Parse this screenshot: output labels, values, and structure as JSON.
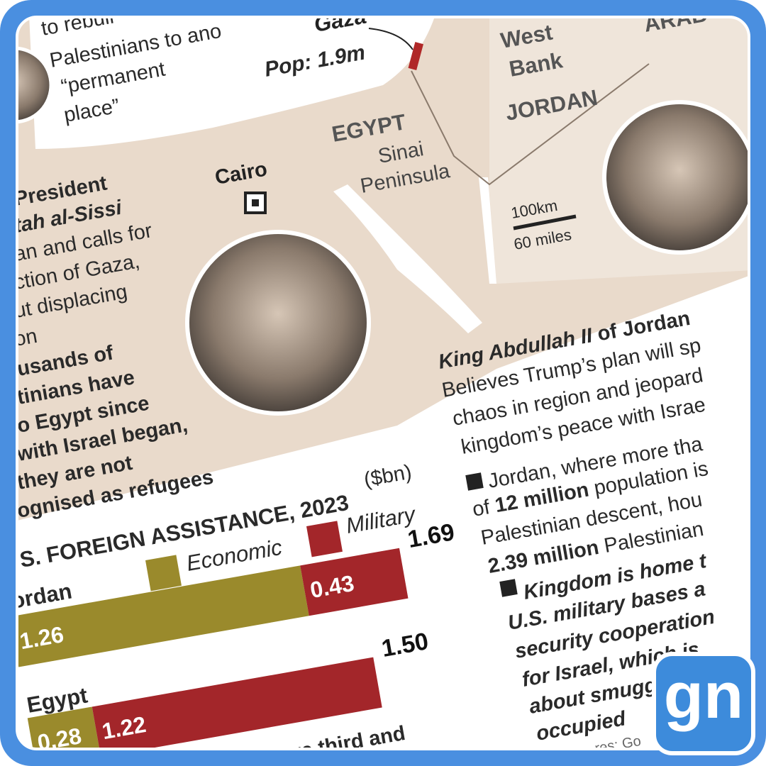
{
  "map": {
    "gaza": "Gaza",
    "gaza_pop": "Pop: 1.9m",
    "west_bank": [
      "West",
      "Bank"
    ],
    "jordan": "JORDAN",
    "arabia": "ARAB",
    "egypt": "EGYPT",
    "sinai": [
      "Sinai",
      "Peninsula"
    ],
    "cairo": "Cairo",
    "scale": [
      "100km",
      "60 miles"
    ]
  },
  "intro": [
    "to rebuil",
    "Palestinians to ano",
    "“permanent",
    "place”"
  ],
  "egypt_profile": {
    "name": [
      "President",
      "tah al-Sissi"
    ],
    "body": [
      "an and calls for",
      "ction of Gaza,",
      "ut displacing",
      "on"
    ],
    "note": [
      "usands of",
      "tinians have",
      "o Egypt since",
      "with Israel began,",
      "they are not",
      "ognised as refugees"
    ]
  },
  "jordan_profile": {
    "name": [
      "King Abdullah II",
      "of Jordan"
    ],
    "body": [
      "Believes Trump’s plan will sp",
      "chaos in region and jeopard",
      "kingdom’s peace with Israe"
    ],
    "point1": [
      [
        "Jordan, where more tha"
      ],
      [
        "of ",
        "12 million",
        " population is"
      ],
      [
        "Palestinian descent, hou"
      ],
      [
        "2.39 million",
        " Palestinian"
      ]
    ],
    "point2": [
      "Kingdom is home t",
      "U.S. military bases a",
      "security cooperation",
      "for Israel, which is",
      "about smuggling r",
      "occupied"
    ]
  },
  "chart_data": {
    "type": "stacked-bar",
    "title": "S. FOREIGN ASSISTANCE, 2023",
    "subtitle": "($bn)",
    "categories": [
      "ordan",
      "Egypt"
    ],
    "series": [
      {
        "name": "Economic",
        "color": "#9a8a2c",
        "values": [
          1.26,
          0.28
        ]
      },
      {
        "name": "Military",
        "color": "#a3262a",
        "values": [
          0.43,
          1.22
        ]
      }
    ],
    "totals": [
      1.69,
      1.5
    ],
    "total_labels": [
      "1.69",
      "1.50"
    ]
  },
  "footer": {
    "text": "t were third and",
    "source": "res: Go"
  },
  "logo": "gn"
}
